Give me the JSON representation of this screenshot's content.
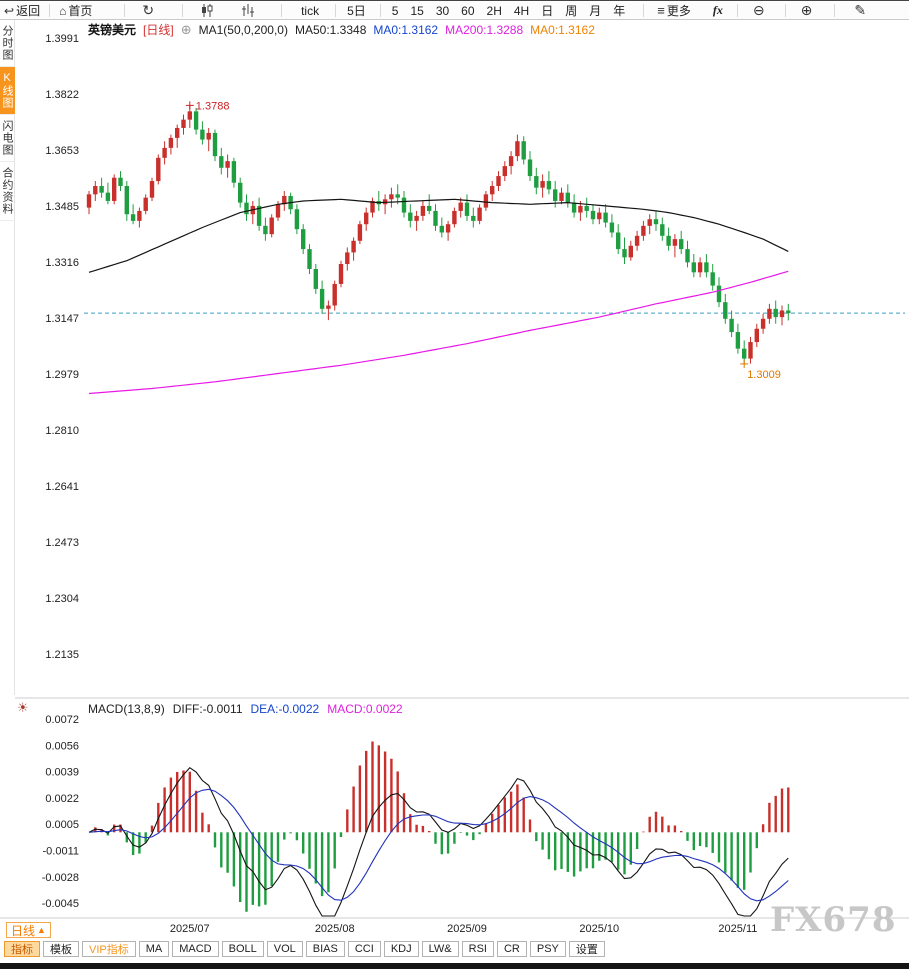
{
  "toolbar": {
    "back": "返回",
    "home": "首页",
    "intervals": [
      "tick",
      "5日",
      "5",
      "15",
      "30",
      "60",
      "2H",
      "4H",
      "日",
      "周",
      "月",
      "年"
    ],
    "more": "更多",
    "fx": "fx"
  },
  "icons": {
    "back": "↩",
    "home": "⌂",
    "refresh": "↻",
    "more": "≡",
    "zoom_out": "⊖",
    "zoom_in": "⊕",
    "draw": "✎",
    "add_indicator": "⊕",
    "macd_panel": "☀"
  },
  "sidebar": {
    "items": [
      {
        "label": "分时图"
      },
      {
        "label": "K线图",
        "active": true
      },
      {
        "label": "闪电图"
      },
      {
        "label": "合约资料"
      }
    ]
  },
  "chart_header": {
    "symbol": "英镑美元",
    "period": "[日线]",
    "ma_setting": "MA1(50,0,200,0)",
    "ma50": "MA50:1.3348",
    "ma0_blue": "MA0:1.3162",
    "ma200": "MA200:1.3288",
    "ma0_orange": "MA0:1.3162"
  },
  "macd_header": {
    "title": "MACD(13,8,9)",
    "diff": "DIFF:-0.0011",
    "dea": "DEA:-0.0022",
    "macd": "MACD:0.0022"
  },
  "bottom": {
    "period_label": "日线",
    "period_arrow": "▲",
    "tabs": [
      {
        "label": "指标"
      },
      {
        "label": "模板"
      },
      {
        "label": "VIP指标"
      },
      {
        "label": "MA"
      },
      {
        "label": "MACD"
      },
      {
        "label": "BOLL"
      },
      {
        "label": "VOL"
      },
      {
        "label": "BIAS"
      },
      {
        "label": "CCI"
      },
      {
        "label": "KDJ"
      },
      {
        "label": "LW&"
      },
      {
        "label": "RSI"
      },
      {
        "label": "CR"
      },
      {
        "label": "PSY"
      },
      {
        "label": "设置"
      }
    ]
  },
  "watermark": {
    "text": "FX678"
  },
  "chart_data": {
    "type": "candlestick+macd",
    "symbol": "英镑美元",
    "period": "日线",
    "y_ticks_main": [
      1.3991,
      1.3822,
      1.3653,
      1.3485,
      1.3316,
      1.3147,
      1.2979,
      1.281,
      1.2641,
      1.2473,
      1.2304,
      1.2135
    ],
    "y_ticks_macd": [
      0.0072,
      0.0056,
      0.0039,
      0.0022,
      0.0005,
      -0.0011,
      -0.0028,
      -0.0045
    ],
    "last_price": 1.3162,
    "high_label": {
      "value": "1.3788",
      "index": 16
    },
    "low_label": {
      "value": "1.3009",
      "index": 104
    },
    "month_ticks": [
      {
        "label": "2025/07",
        "index": 16
      },
      {
        "label": "2025/08",
        "index": 39
      },
      {
        "label": "2025/09",
        "index": 60
      },
      {
        "label": "2025/10",
        "index": 81
      },
      {
        "label": "2025/11",
        "index": 103
      }
    ],
    "macd_params": {
      "fast": 8,
      "slow": 13,
      "signal": 9
    },
    "colors": {
      "up": "#c9302c",
      "down": "#1e9e40",
      "ma50": "#141414",
      "ma200": "#e818e8",
      "last_price_line": "#3a9ec2",
      "diff": "#141414",
      "dea": "#2233bb",
      "hist_up": "#c9302c",
      "hist_down": "#1e9e40",
      "high_label": "#cc2222",
      "low_label": "#e07800",
      "axis_text": "#222222",
      "grid_line": "#cccccc"
    },
    "candles": [
      [
        1.348,
        1.353,
        1.346,
        1.352
      ],
      [
        1.352,
        1.356,
        1.35,
        1.3545
      ],
      [
        1.3545,
        1.357,
        1.351,
        1.3525
      ],
      [
        1.3525,
        1.3555,
        1.349,
        1.35
      ],
      [
        1.35,
        1.358,
        1.349,
        1.357
      ],
      [
        1.357,
        1.359,
        1.353,
        1.3545
      ],
      [
        1.3545,
        1.356,
        1.344,
        1.346
      ],
      [
        1.346,
        1.349,
        1.343,
        1.344
      ],
      [
        1.344,
        1.348,
        1.342,
        1.347
      ],
      [
        1.347,
        1.352,
        1.346,
        1.351
      ],
      [
        1.351,
        1.357,
        1.35,
        1.356
      ],
      [
        1.356,
        1.364,
        1.355,
        1.363
      ],
      [
        1.363,
        1.368,
        1.361,
        1.366
      ],
      [
        1.366,
        1.37,
        1.364,
        1.369
      ],
      [
        1.369,
        1.373,
        1.366,
        1.372
      ],
      [
        1.372,
        1.376,
        1.37,
        1.3745
      ],
      [
        1.3745,
        1.3788,
        1.372,
        1.377
      ],
      [
        1.377,
        1.378,
        1.37,
        1.3715
      ],
      [
        1.3715,
        1.374,
        1.367,
        1.3685
      ],
      [
        1.3685,
        1.372,
        1.365,
        1.3705
      ],
      [
        1.3705,
        1.3715,
        1.362,
        1.3635
      ],
      [
        1.3635,
        1.366,
        1.358,
        1.36
      ],
      [
        1.36,
        1.364,
        1.357,
        1.362
      ],
      [
        1.362,
        1.363,
        1.354,
        1.3555
      ],
      [
        1.3555,
        1.357,
        1.348,
        1.3495
      ],
      [
        1.3495,
        1.352,
        1.344,
        1.346
      ],
      [
        1.346,
        1.35,
        1.343,
        1.3485
      ],
      [
        1.3485,
        1.351,
        1.341,
        1.3425
      ],
      [
        1.3425,
        1.345,
        1.338,
        1.34
      ],
      [
        1.34,
        1.346,
        1.339,
        1.345
      ],
      [
        1.345,
        1.35,
        1.344,
        1.349
      ],
      [
        1.349,
        1.353,
        1.347,
        1.3515
      ],
      [
        1.3515,
        1.3525,
        1.346,
        1.3475
      ],
      [
        1.3475,
        1.349,
        1.34,
        1.3415
      ],
      [
        1.3415,
        1.343,
        1.334,
        1.3355
      ],
      [
        1.3355,
        1.337,
        1.328,
        1.3295
      ],
      [
        1.3295,
        1.331,
        1.322,
        1.3235
      ],
      [
        1.3235,
        1.326,
        1.316,
        1.3175
      ],
      [
        1.3175,
        1.32,
        1.3141,
        1.3185
      ],
      [
        1.3185,
        1.326,
        1.317,
        1.325
      ],
      [
        1.325,
        1.332,
        1.324,
        1.331
      ],
      [
        1.331,
        1.336,
        1.329,
        1.3345
      ],
      [
        1.3345,
        1.339,
        1.332,
        1.338
      ],
      [
        1.338,
        1.344,
        1.337,
        1.343
      ],
      [
        1.343,
        1.348,
        1.341,
        1.3465
      ],
      [
        1.3465,
        1.351,
        1.345,
        1.35
      ],
      [
        1.35,
        1.353,
        1.347,
        1.349
      ],
      [
        1.349,
        1.352,
        1.346,
        1.3505
      ],
      [
        1.3505,
        1.354,
        1.348,
        1.352
      ],
      [
        1.352,
        1.355,
        1.349,
        1.351
      ],
      [
        1.351,
        1.353,
        1.345,
        1.3465
      ],
      [
        1.3465,
        1.349,
        1.342,
        1.344
      ],
      [
        1.344,
        1.347,
        1.341,
        1.3455
      ],
      [
        1.3455,
        1.35,
        1.344,
        1.3485
      ],
      [
        1.3485,
        1.352,
        1.346,
        1.347
      ],
      [
        1.347,
        1.349,
        1.341,
        1.3425
      ],
      [
        1.3425,
        1.345,
        1.339,
        1.3405
      ],
      [
        1.3405,
        1.344,
        1.338,
        1.343
      ],
      [
        1.343,
        1.348,
        1.342,
        1.347
      ],
      [
        1.347,
        1.351,
        1.345,
        1.3495
      ],
      [
        1.3495,
        1.352,
        1.344,
        1.3455
      ],
      [
        1.3455,
        1.348,
        1.342,
        1.344
      ],
      [
        1.344,
        1.349,
        1.343,
        1.348
      ],
      [
        1.348,
        1.353,
        1.347,
        1.352
      ],
      [
        1.352,
        1.356,
        1.35,
        1.3545
      ],
      [
        1.3545,
        1.359,
        1.353,
        1.3575
      ],
      [
        1.3575,
        1.362,
        1.356,
        1.3605
      ],
      [
        1.3605,
        1.365,
        1.358,
        1.3635
      ],
      [
        1.3635,
        1.37,
        1.362,
        1.368
      ],
      [
        1.368,
        1.3695,
        1.361,
        1.3625
      ],
      [
        1.3625,
        1.365,
        1.356,
        1.3575
      ],
      [
        1.3575,
        1.36,
        1.352,
        1.354
      ],
      [
        1.354,
        1.358,
        1.351,
        1.356
      ],
      [
        1.356,
        1.359,
        1.352,
        1.3535
      ],
      [
        1.3535,
        1.356,
        1.348,
        1.35
      ],
      [
        1.35,
        1.354,
        1.349,
        1.3525
      ],
      [
        1.3525,
        1.355,
        1.348,
        1.3495
      ],
      [
        1.3495,
        1.352,
        1.345,
        1.3465
      ],
      [
        1.3465,
        1.35,
        1.344,
        1.3485
      ],
      [
        1.3485,
        1.351,
        1.345,
        1.347
      ],
      [
        1.347,
        1.349,
        1.343,
        1.3445
      ],
      [
        1.3445,
        1.348,
        1.343,
        1.3465
      ],
      [
        1.3465,
        1.349,
        1.342,
        1.3435
      ],
      [
        1.3435,
        1.346,
        1.339,
        1.3405
      ],
      [
        1.3405,
        1.343,
        1.334,
        1.3355
      ],
      [
        1.3355,
        1.339,
        1.331,
        1.333
      ],
      [
        1.333,
        1.338,
        1.332,
        1.3365
      ],
      [
        1.3365,
        1.341,
        1.335,
        1.3395
      ],
      [
        1.3395,
        1.344,
        1.338,
        1.3425
      ],
      [
        1.3425,
        1.346,
        1.34,
        1.3445
      ],
      [
        1.3445,
        1.347,
        1.341,
        1.343
      ],
      [
        1.343,
        1.345,
        1.338,
        1.3395
      ],
      [
        1.3395,
        1.342,
        1.335,
        1.3365
      ],
      [
        1.3365,
        1.34,
        1.333,
        1.3385
      ],
      [
        1.3385,
        1.341,
        1.334,
        1.3355
      ],
      [
        1.3355,
        1.338,
        1.33,
        1.3315
      ],
      [
        1.3315,
        1.334,
        1.327,
        1.3285
      ],
      [
        1.3285,
        1.333,
        1.327,
        1.3315
      ],
      [
        1.3315,
        1.334,
        1.327,
        1.3285
      ],
      [
        1.3285,
        1.331,
        1.323,
        1.3245
      ],
      [
        1.3245,
        1.327,
        1.318,
        1.3195
      ],
      [
        1.3195,
        1.322,
        1.313,
        1.3145
      ],
      [
        1.3145,
        1.317,
        1.309,
        1.3105
      ],
      [
        1.3105,
        1.313,
        1.304,
        1.3055
      ],
      [
        1.3055,
        1.308,
        1.3009,
        1.3025
      ],
      [
        1.3025,
        1.309,
        1.301,
        1.3075
      ],
      [
        1.3075,
        1.313,
        1.306,
        1.3115
      ],
      [
        1.3115,
        1.316,
        1.31,
        1.3145
      ],
      [
        1.3145,
        1.319,
        1.313,
        1.3175
      ],
      [
        1.3175,
        1.32,
        1.313,
        1.315
      ],
      [
        1.315,
        1.3185,
        1.3125,
        1.317
      ],
      [
        1.317,
        1.319,
        1.314,
        1.3162
      ]
    ],
    "ma50_keypoints": [
      [
        0,
        1.3285
      ],
      [
        6,
        1.332
      ],
      [
        12,
        1.337
      ],
      [
        18,
        1.342
      ],
      [
        24,
        1.3465
      ],
      [
        30,
        1.349
      ],
      [
        34,
        1.35
      ],
      [
        40,
        1.3505
      ],
      [
        46,
        1.3495
      ],
      [
        52,
        1.35
      ],
      [
        58,
        1.3505
      ],
      [
        64,
        1.3495
      ],
      [
        70,
        1.349
      ],
      [
        76,
        1.3495
      ],
      [
        82,
        1.3485
      ],
      [
        88,
        1.3475
      ],
      [
        92,
        1.3465
      ],
      [
        96,
        1.345
      ],
      [
        100,
        1.343
      ],
      [
        104,
        1.3405
      ],
      [
        107,
        1.3385
      ],
      [
        111,
        1.3348
      ]
    ],
    "ma200_keypoints": [
      [
        0,
        1.292
      ],
      [
        10,
        1.2935
      ],
      [
        20,
        1.2955
      ],
      [
        30,
        1.298
      ],
      [
        40,
        1.3005
      ],
      [
        50,
        1.3035
      ],
      [
        60,
        1.307
      ],
      [
        70,
        1.311
      ],
      [
        81,
        1.315
      ],
      [
        90,
        1.319
      ],
      [
        99,
        1.3225
      ],
      [
        105,
        1.3255
      ],
      [
        111,
        1.3288
      ]
    ]
  }
}
